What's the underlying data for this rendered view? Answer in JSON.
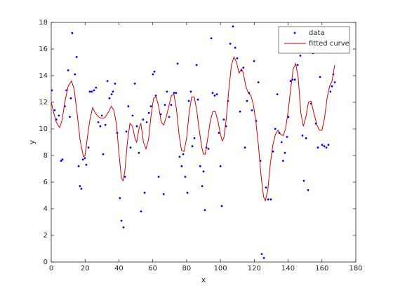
{
  "chart_data": {
    "type": "scatter",
    "xlabel": "x",
    "ylabel": "y",
    "xlim": [
      0,
      180
    ],
    "xticks": [
      0,
      20,
      40,
      60,
      80,
      100,
      120,
      140,
      160,
      180
    ],
    "ylim": [
      0,
      18
    ],
    "yticks": [
      0,
      2,
      4,
      6,
      8,
      10,
      12,
      14,
      16,
      18
    ],
    "legend": "northeast",
    "series": [
      {
        "name": "data",
        "type": "scatter",
        "color": "#0000ff",
        "x": [
          0.4,
          2,
          3,
          4.5,
          5.8,
          6.6,
          8,
          9,
          10,
          11,
          11.6,
          12.4,
          14,
          15,
          16.2,
          17,
          17.8,
          18.7,
          19.9,
          20.7,
          22,
          22.8,
          24,
          25.3,
          26.5,
          27.8,
          29,
          29.9,
          30.7,
          32,
          33.2,
          34.4,
          35.7,
          36.5,
          37.7,
          39,
          40.6,
          41.5,
          42.7,
          43.6,
          44.4,
          45.6,
          46.9,
          48.1,
          49.4,
          50.6,
          51.8,
          53.1,
          54.3,
          55.2,
          56.4,
          57.7,
          58.9,
          60.1,
          61,
          61.8,
          63.5,
          64.7,
          66.4,
          67.2,
          68.4,
          69.7,
          70.9,
          72.6,
          73.8,
          74.7,
          75.9,
          77.1,
          78,
          79.2,
          80.5,
          81.3,
          82.5,
          83.4,
          84.6,
          85.9,
          86.7,
          88,
          89.2,
          90,
          90.8,
          91.7,
          92.9,
          94.6,
          95.4,
          96.6,
          97.9,
          99.1,
          100,
          100.8,
          102,
          103.3,
          104.5,
          105.8,
          107.4,
          108.7,
          109.9,
          111.6,
          112.4,
          113.6,
          114.5,
          115.7,
          116.9,
          118.6,
          119.9,
          121.1,
          122.4,
          123.6,
          124.4,
          125.7,
          126.9,
          128.2,
          129.8,
          131.1,
          132.4,
          133.6,
          134.8,
          136.1,
          137,
          138.1,
          139.4,
          140.2,
          141.4,
          142.6,
          144,
          145.6,
          147.2,
          148.5,
          149.3,
          150.6,
          151.8,
          153.5,
          154.7,
          156.4,
          157.6,
          158.9,
          160.1,
          161.3,
          162.6,
          163.8,
          165,
          165.9,
          166.7,
          167.6
        ],
        "values": [
          12.9,
          11.4,
          10.7,
          11,
          7.6,
          7.7,
          11.7,
          12.9,
          14.4,
          10.9,
          12.3,
          17.2,
          14.1,
          15.4,
          7.2,
          5.7,
          5.5,
          7.7,
          7.8,
          7.3,
          8.6,
          12.8,
          12.8,
          12.9,
          13.1,
          10.5,
          10.2,
          11,
          8.1,
          10.3,
          13.6,
          12.3,
          12.6,
          12.8,
          13.4,
          9.7,
          4.8,
          3.1,
          2.6,
          6.4,
          9.8,
          11.7,
          8.6,
          11,
          13.4,
          10.2,
          8.2,
          3.8,
          10.7,
          5.2,
          10.5,
          11.2,
          11.7,
          14.1,
          14.3,
          12.5,
          6.4,
          11.1,
          5.1,
          11.8,
          12.8,
          10.9,
          11.8,
          12.7,
          12.7,
          14.9,
          7.9,
          7.2,
          8.1,
          6.4,
          5.2,
          12.1,
          12.8,
          8.7,
          9.3,
          14.8,
          12.2,
          7.2,
          5.7,
          6.8,
          3.9,
          8.6,
          8.5,
          16.8,
          12.7,
          12.5,
          12.6,
          9.7,
          7.2,
          4.2,
          10.7,
          10.2,
          12.1,
          16.4,
          17.7,
          16.1,
          15.3,
          11.3,
          14.4,
          14.6,
          8.6,
          12.1,
          12.7,
          11.4,
          15.1,
          10.6,
          13.5,
          7.6,
          0.6,
          0.3,
          5.6,
          4.7,
          4.7,
          8.3,
          10,
          12.6,
          9.7,
          9,
          7.6,
          8.2,
          9.4,
          10.9,
          13.6,
          13.7,
          13.7,
          14.8,
          15.5,
          9.5,
          6.1,
          9.3,
          5.4,
          11.9,
          15.7,
          10.4,
          8.6,
          13.9,
          8.8,
          8.7,
          8.6,
          8.8,
          12.8,
          13.2,
          14.1,
          13.5
        ]
      },
      {
        "name": "fitted curve",
        "type": "line",
        "color": "#cc0000",
        "x": [
          0,
          1.5,
          3,
          5,
          6.5,
          8,
          10,
          12,
          13.5,
          15,
          17,
          19,
          20,
          21.5,
          23,
          24.5,
          26,
          28,
          29.5,
          31,
          32,
          34,
          35.5,
          37,
          38.5,
          40,
          41.5,
          42.5,
          43.5,
          45,
          46.5,
          48,
          49.5,
          50.5,
          52,
          53,
          54.5,
          56,
          57.5,
          59,
          60.5,
          62,
          63.5,
          65,
          66.5,
          68,
          69.5,
          71,
          72.5,
          74,
          75.5,
          77,
          78.5,
          80,
          81.5,
          83,
          84.5,
          86,
          87.5,
          89,
          90,
          91,
          92.5,
          94,
          95.5,
          97,
          98.5,
          100,
          101,
          102,
          103.5,
          105,
          106.5,
          108,
          109.5,
          111,
          112.5,
          113.5,
          115,
          116.5,
          118,
          119.5,
          121,
          122.5,
          124,
          125.5,
          126.5,
          128,
          129.5,
          131,
          132.5,
          134,
          135.5,
          137,
          138.5,
          140,
          141.5,
          143,
          144.5,
          146,
          147.5,
          149,
          150.5,
          152,
          153.5,
          155,
          157,
          158.5,
          160,
          161.5,
          163,
          164.5,
          166,
          167.5
        ],
        "values": [
          12,
          11.2,
          10.5,
          10.1,
          10.7,
          12,
          13.2,
          13.6,
          13,
          11.5,
          9.2,
          7.9,
          8,
          9.5,
          10.8,
          11.6,
          11.2,
          10.9,
          10.8,
          10.8,
          10.9,
          11.3,
          11.7,
          11.4,
          10.4,
          8.2,
          6.3,
          6.1,
          6.8,
          9,
          10.4,
          10.2,
          9.3,
          9,
          10.1,
          10.4,
          9,
          8.5,
          9.2,
          11,
          12.3,
          12.4,
          11.7,
          10.5,
          10.3,
          10.9,
          11.7,
          12.5,
          12.6,
          11.5,
          9.6,
          8.4,
          8.3,
          9.3,
          11.2,
          12.4,
          12.4,
          11.4,
          9.9,
          8.6,
          8.1,
          8.1,
          9.3,
          10.6,
          11.3,
          11.3,
          10.6,
          9.6,
          9.1,
          9.3,
          10.8,
          13,
          14.8,
          15.4,
          15,
          14.2,
          14.5,
          14.2,
          13.2,
          12.7,
          12.5,
          11.8,
          10.5,
          8.7,
          6.5,
          4.9,
          4.6,
          5.4,
          7.4,
          8.8,
          9.6,
          9.9,
          9.6,
          9.5,
          10,
          11.3,
          13,
          14.5,
          14.9,
          13.8,
          11.2,
          10.2,
          10.9,
          12,
          12.1,
          11.3,
          10.3,
          9.9,
          9.9,
          10.8,
          12.3,
          13.2,
          13.6,
          14.8
        ]
      }
    ]
  }
}
